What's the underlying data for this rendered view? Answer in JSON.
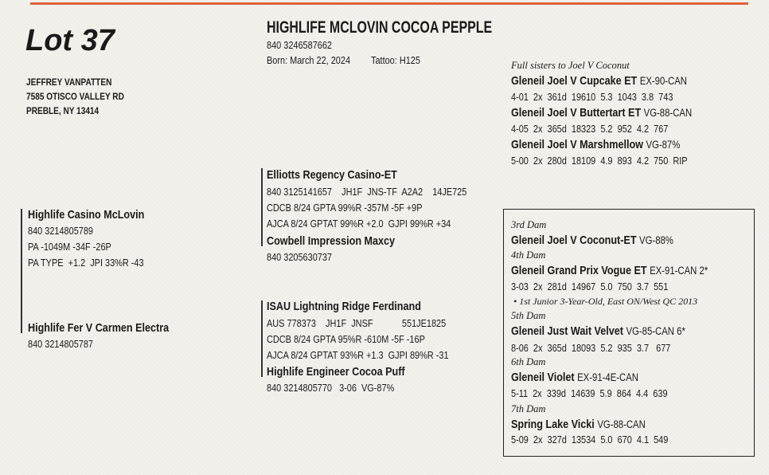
{
  "lot": "Lot 37",
  "consignor": {
    "name": "JEFFREY VANPATTEN",
    "address": "7585 OTISCO VALLEY RD",
    "city": "PREBLE, NY 13414"
  },
  "animal": {
    "name": "HIGHLIFE MCLOVIN COCOA PEPPLE",
    "registration": "840 3246587662",
    "born": "Born: March 22, 2024",
    "tattoo": "Tattoo: H125"
  },
  "pedigree": {
    "sire": {
      "name": "Highlife Casino McLovin",
      "lines": [
        "840 3214805789",
        "PA -1049M -34F -26P",
        "PA TYPE  +1.2  JPI 33%R -43"
      ]
    },
    "sire_sire": {
      "name": "Elliotts Regency Casino-ET",
      "lines": [
        "840 3125141657    JH1F  JNS-TF  A2A2    14JE725",
        "CDCB 8/24 GPTA 99%R -357M -5F +9P",
        "AJCA 8/24 GPTAT 99%R +2.0  GJPI 99%R +34"
      ]
    },
    "sire_dam": {
      "name": "Cowbell Impression Maxcy",
      "lines": [
        "840 3205630737"
      ]
    },
    "dam": {
      "name": "Highlife Fer V Carmen Electra",
      "lines": [
        "840 3214805787"
      ]
    },
    "dam_sire": {
      "name": "ISAU Lightning Ridge Ferdinand",
      "lines": [
        "AUS 778373    JH1F  JNSF            551JE1825",
        "CDCB 8/24 GPTA 95%R -610M -5F -16P",
        "AJCA 8/24 GPTAT 93%R +1.3  GJPI 89%R -31"
      ]
    },
    "dam_dam": {
      "name": "Highlife Engineer Cocoa Puff",
      "lines": [
        "840 3214805770   3-06  VG-87%"
      ]
    }
  },
  "full_sisters": {
    "heading": "Full sisters to Joel V Coconut",
    "animals": [
      {
        "name": "Gleneil Joel V Cupcake ET",
        "classification": "EX-90-CAN",
        "record": "4-01  2x  361d  19610  5.3  1043  3.8  743"
      },
      {
        "name": "Gleneil Joel V Buttertart ET",
        "classification": "VG-88-CAN",
        "record": "4-05  2x  365d  18323  5.2  952  4.2  767"
      },
      {
        "name": "Gleneil Joel V Marshmellow",
        "classification": "VG-87%",
        "record": "5-00  2x  280d  18109  4.9  893  4.2  750  RIP"
      }
    ]
  },
  "maternal_line": [
    {
      "generation": "3rd Dam",
      "name": "Gleneil Joel V Coconut-ET",
      "classification": "VG-88%"
    },
    {
      "generation": "4th Dam",
      "name": "Gleneil Grand Prix Vogue ET",
      "classification": "EX-91-CAN 2*",
      "record": "3-03  2x  281d  14967  5.0  750  3.7  551",
      "note": "• 1st Junior 3-Year-Old, East ON/West QC 2013"
    },
    {
      "generation": "5th Dam",
      "name": "Gleneil Just Wait Velvet",
      "classification": "VG-85-CAN 6*",
      "record": "8-06  2x  365d  18093  5.2  935  3.7   677"
    },
    {
      "generation": "6th Dam",
      "name": "Gleneil Violet",
      "classification": "EX-91-4E-CAN",
      "record": "5-11  2x  339d  14639  5.9  864  4.4  639"
    },
    {
      "generation": "7th Dam",
      "name": "Spring Lake Vicki",
      "classification": "VG-88-CAN",
      "record": "5-09  2x  327d  13534  5.0  670  4.1  549"
    }
  ]
}
